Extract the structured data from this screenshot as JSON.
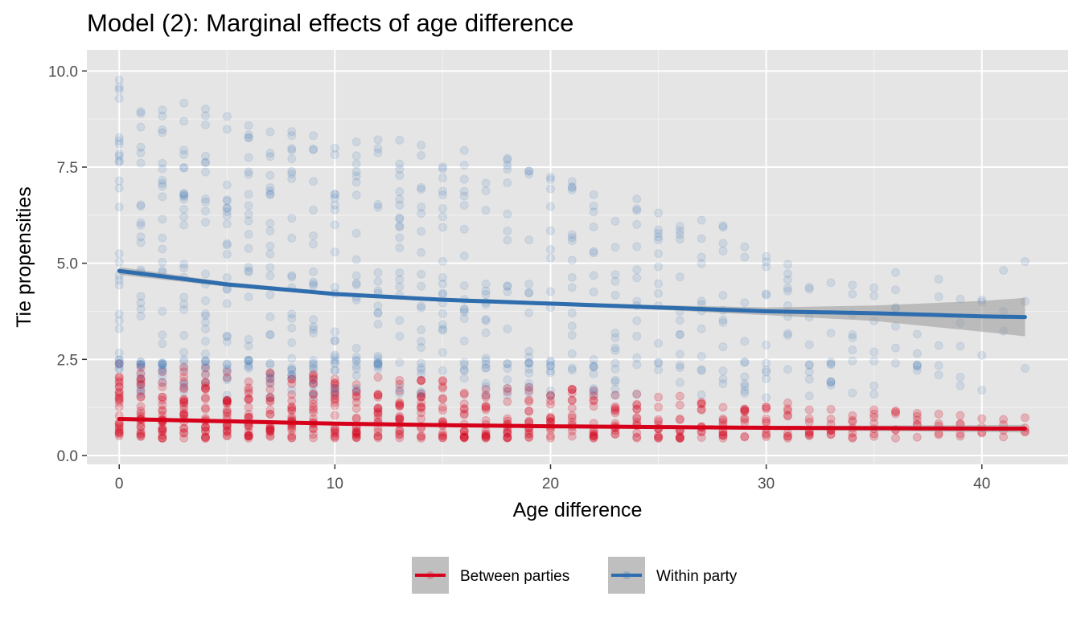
{
  "chart_data": {
    "type": "scatter",
    "title": "Model (2): Marginal effects of age difference",
    "xlabel": "Age difference",
    "ylabel": "Tie propensities",
    "xlim": [
      -1.5,
      44.0
    ],
    "ylim": [
      -0.23,
      10.55
    ],
    "xticks": [
      0,
      10,
      20,
      30,
      40
    ],
    "yticks": [
      0.0,
      2.5,
      5.0,
      7.5,
      10.0
    ],
    "xtick_labels": [
      "0",
      "10",
      "20",
      "30",
      "40"
    ],
    "ytick_labels": [
      "0.0",
      "2.5",
      "5.0",
      "7.5",
      "10.0"
    ],
    "grid": true,
    "legend_position": "bottom",
    "series": [
      {
        "name": "Between parties",
        "color": "#D7001A",
        "point_range": {
          "x": [
            0,
            42
          ],
          "y_min": 0.45,
          "y_max": [
            2.4,
            2.2,
            2.0,
            1.8,
            1.5,
            1.2,
            1.0
          ]
        },
        "smooth_line": {
          "x": [
            0,
            5,
            10,
            15,
            20,
            25,
            30,
            35,
            40,
            42
          ],
          "y": [
            0.95,
            0.89,
            0.83,
            0.79,
            0.76,
            0.74,
            0.72,
            0.71,
            0.7,
            0.7
          ],
          "ci_halfwidth": [
            0.05,
            0.03,
            0.03,
            0.03,
            0.03,
            0.03,
            0.05,
            0.07,
            0.09,
            0.1
          ]
        }
      },
      {
        "name": "Within party",
        "color": "#2E6DAE",
        "point_range": {
          "x": [
            0,
            42
          ],
          "y_min": 1.5,
          "y_max": [
            10.05,
            9.1,
            8.3,
            8.1,
            7.3,
            6.4,
            5.3,
            4.7,
            5.1
          ]
        },
        "smooth_line": {
          "x": [
            0,
            5,
            10,
            15,
            20,
            25,
            30,
            35,
            40,
            42
          ],
          "y": [
            4.8,
            4.45,
            4.2,
            4.05,
            3.95,
            3.85,
            3.75,
            3.7,
            3.62,
            3.6
          ],
          "ci_halfwidth": [
            0.1,
            0.06,
            0.05,
            0.05,
            0.05,
            0.06,
            0.1,
            0.2,
            0.4,
            0.5
          ]
        }
      }
    ]
  }
}
